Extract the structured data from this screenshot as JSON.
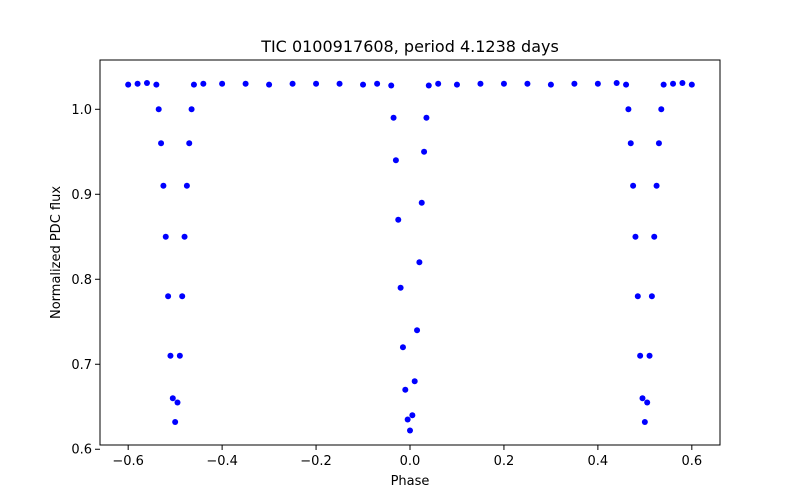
{
  "chart_data": {
    "type": "scatter",
    "title": "TIC 0100917608, period 4.1238 days",
    "xlabel": "Phase",
    "ylabel": "Normalized PDC flux",
    "xlim": [
      -0.66,
      0.66
    ],
    "ylim": [
      0.605,
      1.058
    ],
    "xticks": [
      -0.6,
      -0.4,
      -0.2,
      0.0,
      0.2,
      0.4,
      0.6
    ],
    "xtick_labels": [
      "−0.6",
      "−0.4",
      "−0.2",
      "0.0",
      "0.2",
      "0.4",
      "0.6"
    ],
    "yticks": [
      0.6,
      0.7,
      0.8,
      0.9,
      1.0
    ],
    "ytick_labels": [
      "0.6",
      "0.7",
      "0.8",
      "0.9",
      "1.0"
    ],
    "grid": false,
    "legend": "none",
    "marker_color": "#0000ff",
    "series": [
      {
        "x": [
          -0.6,
          -0.58,
          -0.56,
          -0.54,
          -0.535,
          -0.53,
          -0.525,
          -0.52,
          -0.515,
          -0.51,
          -0.505,
          -0.5,
          -0.495,
          -0.49,
          -0.485,
          -0.48,
          -0.475,
          -0.47,
          -0.465,
          -0.46,
          -0.44,
          -0.4,
          -0.35,
          -0.3,
          -0.25,
          -0.2,
          -0.15,
          -0.1,
          -0.07,
          -0.04,
          -0.035,
          -0.03,
          -0.025,
          -0.02,
          -0.015,
          -0.01,
          -0.005,
          0.0,
          0.005,
          0.01,
          0.015,
          0.02,
          0.025,
          0.03,
          0.035,
          0.04,
          0.06,
          0.1,
          0.15,
          0.2,
          0.25,
          0.3,
          0.35,
          0.4,
          0.44,
          0.46,
          0.465,
          0.47,
          0.475,
          0.48,
          0.485,
          0.49,
          0.495,
          0.5,
          0.505,
          0.51,
          0.515,
          0.52,
          0.525,
          0.53,
          0.535,
          0.54,
          0.56,
          0.58,
          0.6
        ],
        "y": [
          1.029,
          1.03,
          1.031,
          1.029,
          1.0,
          0.96,
          0.91,
          0.85,
          0.78,
          0.71,
          0.66,
          0.632,
          0.655,
          0.71,
          0.78,
          0.85,
          0.91,
          0.96,
          1.0,
          1.029,
          1.03,
          1.03,
          1.03,
          1.029,
          1.03,
          1.03,
          1.03,
          1.029,
          1.03,
          1.028,
          0.99,
          0.94,
          0.87,
          0.79,
          0.72,
          0.67,
          0.635,
          0.622,
          0.64,
          0.68,
          0.74,
          0.82,
          0.89,
          0.95,
          0.99,
          1.028,
          1.03,
          1.029,
          1.03,
          1.03,
          1.03,
          1.029,
          1.03,
          1.03,
          1.031,
          1.029,
          1.0,
          0.96,
          0.91,
          0.85,
          0.78,
          0.71,
          0.66,
          0.632,
          0.655,
          0.71,
          0.78,
          0.85,
          0.91,
          0.96,
          1.0,
          1.029,
          1.03,
          1.031,
          1.029
        ]
      }
    ]
  }
}
